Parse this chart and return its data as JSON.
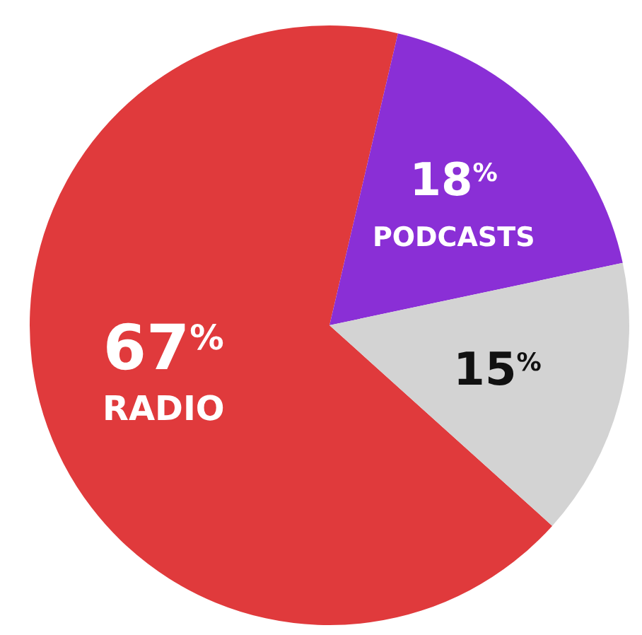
{
  "chart_data": {
    "type": "pie",
    "categories": [
      "RADIO",
      "PODCASTS",
      null
    ],
    "values": [
      67,
      18,
      15
    ],
    "colors": [
      "#e03a3c",
      "#8a2fd6",
      "#d3d3d3"
    ],
    "value_labels": [
      "67$^{%}$",
      "18$^{%}$",
      "15$^{%}$"
    ],
    "legend": false
  }
}
